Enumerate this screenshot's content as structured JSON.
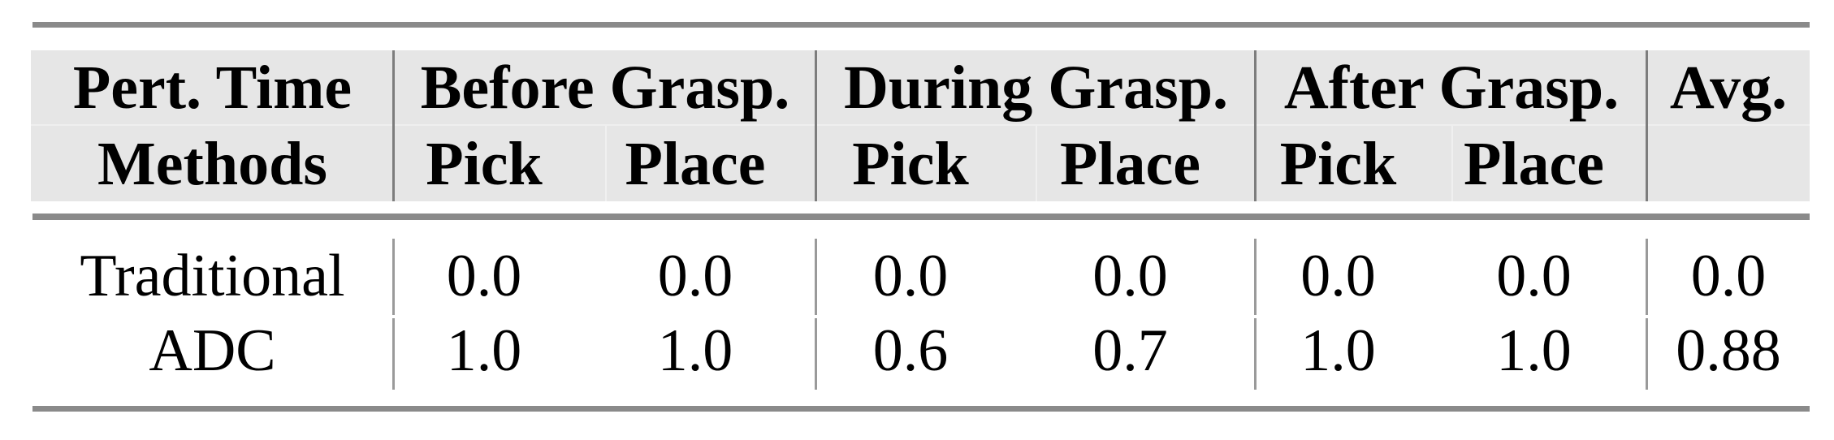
{
  "table": {
    "corner": {
      "top": "Pert. Time",
      "bottom": "Methods"
    },
    "groups": [
      {
        "label": "Before Grasp.",
        "sub": [
          "Pick",
          "Place"
        ]
      },
      {
        "label": "During Grasp.",
        "sub": [
          "Pick",
          "Place"
        ]
      },
      {
        "label": "After Grasp.",
        "sub": [
          "Pick",
          "Place"
        ]
      }
    ],
    "avg_label": "Avg.",
    "rows": [
      {
        "method": "Traditional",
        "values": [
          "0.0",
          "0.0",
          "0.0",
          "0.0",
          "0.0",
          "0.0",
          "0.0"
        ]
      },
      {
        "method": "ADC",
        "values": [
          "1.0",
          "1.0",
          "0.6",
          "0.7",
          "1.0",
          "1.0",
          "0.88"
        ]
      }
    ]
  },
  "colors": {
    "header_background": "#e6e6e6",
    "rule_gray": "#8a8a8a",
    "header_divider": "#7d7d7d",
    "body_divider": "#9a9a9a",
    "text": "#000000",
    "page_background": "#ffffff"
  },
  "chart_data": {
    "type": "table",
    "title": "",
    "row_header": "Methods",
    "column_group_header": "Pert. Time",
    "columns": [
      "Before Grasp. Pick",
      "Before Grasp. Place",
      "During Grasp. Pick",
      "During Grasp. Place",
      "After Grasp. Pick",
      "After Grasp. Place",
      "Avg."
    ],
    "rows": [
      {
        "method": "Traditional",
        "values": [
          0.0,
          0.0,
          0.0,
          0.0,
          0.0,
          0.0,
          0.0
        ]
      },
      {
        "method": "ADC",
        "values": [
          1.0,
          1.0,
          0.6,
          0.7,
          1.0,
          1.0,
          0.88
        ]
      }
    ]
  }
}
